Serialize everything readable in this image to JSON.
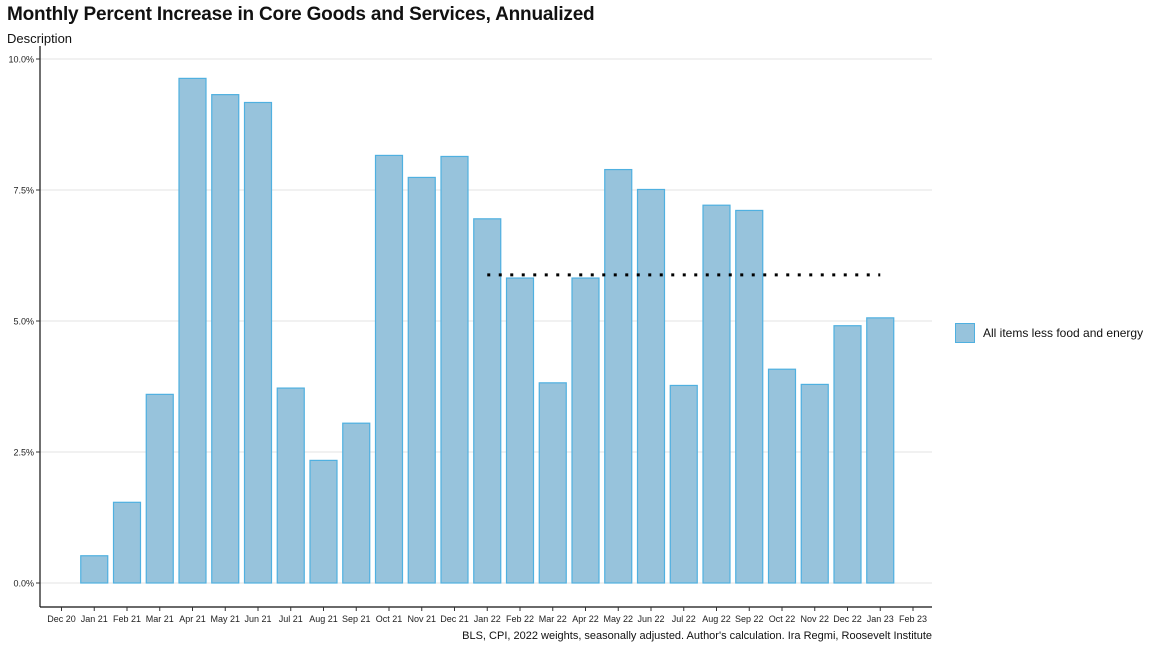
{
  "chart_data": {
    "type": "bar",
    "title": "Monthly Percent Increase in Core Goods and Services, Annualized",
    "subtitle": "Description",
    "caption": "BLS, CPI, 2022 weights, seasonally adjusted. Author's calculation. Ira Regmi, Roosevelt Institute",
    "xlabel": "",
    "ylabel": "",
    "ylim": [
      0,
      10
    ],
    "y_ticks": [
      0,
      2.5,
      5,
      7.5,
      10
    ],
    "y_tick_labels": [
      "0.0%",
      "2.5%",
      "5.0%",
      "7.5%",
      "10.0%"
    ],
    "x_tick_labels": [
      "Dec 20",
      "Jan 21",
      "Feb 21",
      "Mar 21",
      "Apr 21",
      "May 21",
      "Jun 21",
      "Jul 21",
      "Aug 21",
      "Sep 21",
      "Oct 21",
      "Nov 21",
      "Dec 21",
      "Jan 22",
      "Feb 22",
      "Mar 22",
      "Apr 22",
      "May 22",
      "Jun 22",
      "Jul 22",
      "Aug 22",
      "Sep 22",
      "Oct 22",
      "Nov 22",
      "Dec 22",
      "Jan 23",
      "Feb 23"
    ],
    "categories": [
      "Jan 21",
      "Feb 21",
      "Mar 21",
      "Apr 21",
      "May 21",
      "Jun 21",
      "Jul 21",
      "Aug 21",
      "Sep 21",
      "Oct 21",
      "Nov 21",
      "Dec 21",
      "Jan 22",
      "Feb 22",
      "Mar 22",
      "Apr 22",
      "May 22",
      "Jun 22",
      "Jul 22",
      "Aug 22",
      "Sep 22",
      "Oct 22",
      "Nov 22",
      "Dec 22",
      "Jan 23"
    ],
    "series": [
      {
        "name": "All items less food and energy",
        "values": [
          0.52,
          1.54,
          3.6,
          9.63,
          9.32,
          9.17,
          3.72,
          2.34,
          3.05,
          8.16,
          7.74,
          8.14,
          6.95,
          5.82,
          3.82,
          5.82,
          7.89,
          7.51,
          3.77,
          7.21,
          7.11,
          4.08,
          3.79,
          4.91,
          5.06
        ]
      }
    ],
    "reference_line": {
      "style": "dotted",
      "value": 5.88,
      "from": "Jan 22",
      "to": "Jan 23"
    },
    "grid": true,
    "legend_position": "right",
    "colors": {
      "bar_fill": "#97c3dc",
      "bar_stroke": "#4fb0e0",
      "reference_line": "#000000",
      "grid": "#e3e3e3"
    }
  }
}
